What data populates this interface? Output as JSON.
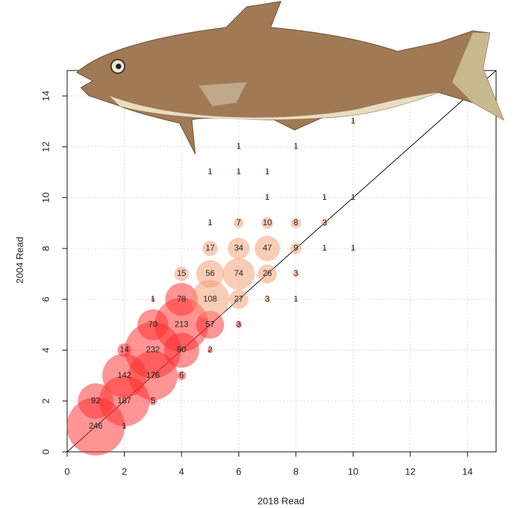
{
  "chart_data": {
    "type": "bubble",
    "x_label": "2018 Read",
    "y_label": "2004 Read",
    "xlim": [
      0,
      15
    ],
    "ylim": [
      0,
      15
    ],
    "xticks": [
      0,
      2,
      4,
      6,
      8,
      10,
      12,
      14
    ],
    "yticks": [
      0,
      2,
      4,
      6,
      8,
      10,
      12,
      14
    ],
    "grid": true,
    "identity_line": true,
    "series": [
      {
        "color": "#ff2a2a",
        "x": [
          1,
          2,
          1,
          2,
          3,
          2,
          3,
          4,
          2,
          3,
          4,
          5,
          3,
          4,
          5,
          6,
          3,
          4
        ],
        "y": [
          1,
          1,
          2,
          2,
          2,
          3,
          3,
          3,
          4,
          4,
          4,
          4,
          5,
          5,
          5,
          5,
          6,
          6
        ],
        "sizes": [
          246,
          1,
          92,
          187,
          5,
          142,
          176,
          6,
          14,
          232,
          90,
          2,
          70,
          213,
          57,
          3,
          1,
          78
        ]
      },
      {
        "color": "#f39a6e",
        "x": [
          5,
          6,
          7,
          8,
          4,
          5,
          6,
          7,
          8,
          5,
          6,
          7,
          8,
          9,
          10,
          5,
          6,
          7,
          8,
          9,
          7,
          9,
          10,
          5,
          6,
          7,
          6,
          8,
          10
        ],
        "y": [
          6,
          6,
          6,
          6,
          7,
          7,
          7,
          7,
          7,
          8,
          8,
          8,
          8,
          8,
          8,
          9,
          9,
          9,
          9,
          9,
          10,
          10,
          10,
          11,
          11,
          11,
          12,
          12,
          13
        ],
        "sizes": [
          108,
          27,
          3,
          1,
          15,
          56,
          74,
          26,
          3,
          17,
          34,
          47,
          9,
          1,
          1,
          1,
          7,
          10,
          8,
          3,
          1,
          1,
          1,
          1,
          1,
          1,
          1,
          1,
          1
        ]
      }
    ]
  }
}
